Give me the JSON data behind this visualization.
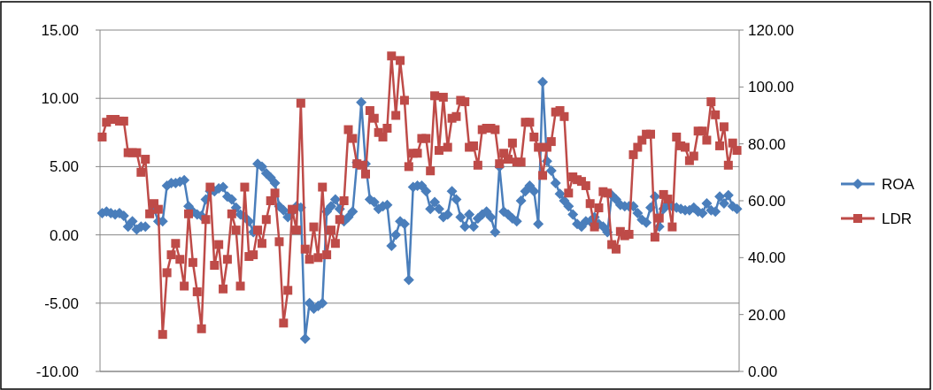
{
  "chart_data": {
    "type": "line",
    "categories": [
      null,
      null,
      null,
      null,
      null,
      null,
      null,
      null,
      null,
      null,
      null,
      null,
      null,
      null,
      null,
      null,
      null,
      null,
      null,
      null,
      null,
      null,
      null,
      null,
      null,
      null,
      null,
      null,
      null,
      null,
      null,
      null,
      null,
      null,
      null,
      null,
      null,
      null,
      null,
      null,
      null,
      null,
      null,
      null,
      null,
      null,
      null,
      null,
      null,
      null,
      null,
      null,
      null,
      null,
      null,
      null,
      null,
      null,
      null,
      null,
      null,
      null,
      null,
      null,
      null,
      null,
      null,
      null,
      null,
      null,
      null,
      null,
      null,
      null,
      null,
      null,
      null,
      null,
      null,
      null,
      null,
      null,
      null,
      null,
      null,
      null,
      null,
      null,
      null,
      null,
      null,
      null,
      null,
      null,
      null,
      null,
      null,
      null,
      null,
      null,
      null,
      null,
      null,
      null,
      null,
      null,
      null,
      null,
      null,
      null,
      null,
      null,
      null,
      null,
      null,
      null,
      null,
      null,
      null,
      null,
      null,
      null,
      null,
      null,
      null,
      null,
      null,
      null,
      null,
      null,
      null,
      null,
      null,
      null,
      null,
      null,
      null,
      null,
      null,
      null,
      null,
      null,
      null,
      null,
      null,
      null,
      null,
      null
    ],
    "series": [
      {
        "name": "ROA",
        "color": "#4a7ebb",
        "marker": "diamond",
        "values": [
          1.6,
          1.7,
          1.6,
          1.5,
          1.6,
          1.4,
          0.6,
          1.0,
          0.4,
          0.6,
          0.6,
          null,
          1.9,
          1.0,
          1.0,
          3.6,
          3.8,
          3.8,
          3.9,
          4.0,
          2.1,
          1.7,
          1.5,
          1.4,
          2.6,
          3.2,
          3.2,
          3.4,
          3.5,
          2.8,
          2.6,
          2.0,
          1.5,
          1.3,
          1.0,
          0.2,
          5.2,
          5.0,
          4.5,
          4.2,
          3.8,
          2.1,
          1.8,
          1.3,
          1.7,
          2.1,
          2.0,
          -7.6,
          -5.0,
          -5.4,
          -5.2,
          -5.0,
          1.7,
          2.1,
          2.6,
          1.9,
          1.0,
          1.3,
          1.7,
          5.3,
          9.7,
          5.2,
          2.6,
          2.4,
          1.9,
          2.1,
          2.2,
          -0.8,
          0,
          1.0,
          0.8,
          -3.3,
          3.5,
          3.6,
          3.6,
          3.2,
          1.9,
          2.4,
          1.9,
          1.3,
          1.5,
          3.2,
          2.6,
          1.3,
          0.6,
          1.5,
          0.6,
          1.2,
          1.5,
          1.7,
          1.3,
          0.2,
          5.0,
          1.7,
          1.5,
          1.2,
          1.0,
          2.5,
          3.2,
          3.6,
          3.2,
          0.8,
          11.2,
          5.4,
          4.7,
          3.8,
          3.0,
          2.5,
          2.1,
          1.5,
          0.8,
          0.6,
          1.0,
          1.0,
          1.3,
          0.8,
          0.6,
          0.2,
          2.9,
          2.6,
          2.2,
          2.1,
          2.1,
          2.1,
          1.6,
          1.1,
          0.9,
          2.0,
          2.8,
          0.6,
          1.9,
          2.3,
          2.1,
          2.0,
          1.9,
          1.8,
          1.8,
          2.0,
          1.7,
          1.6,
          2.3,
          1.8,
          1.7,
          2.8,
          2.3,
          2.9,
          2.1,
          1.9
        ]
      },
      {
        "name": "LDR",
        "color": "#be4b48",
        "marker": "square",
        "axis": "y2",
        "values": [
          82.4,
          87.6,
          88.6,
          88.6,
          88,
          88,
          76.9,
          76.9,
          76.9,
          70,
          74.6,
          55.4,
          59,
          57,
          13,
          34.7,
          41,
          45,
          39.4,
          30,
          55.4,
          38.3,
          28,
          15,
          53.4,
          64.8,
          37.3,
          44.6,
          29,
          39.4,
          55.4,
          49.7,
          30,
          64.8,
          40.4,
          41,
          49.7,
          45,
          53.4,
          60,
          62.7,
          45.6,
          17,
          28.5,
          57,
          49.7,
          94.3,
          43,
          39.4,
          50.8,
          40,
          64.8,
          41,
          49.7,
          45,
          53.4,
          60,
          85,
          81.9,
          73,
          72.5,
          69.4,
          91.7,
          89,
          84,
          82.4,
          85.5,
          110.9,
          90,
          109.3,
          95.3,
          72,
          76.7,
          76.7,
          81.9,
          81.9,
          70.5,
          96.9,
          77.7,
          96.4,
          78.8,
          89,
          89.6,
          95.3,
          94.8,
          78.8,
          79.3,
          72.5,
          85,
          85.5,
          85.5,
          85,
          73,
          76.7,
          74.6,
          80.3,
          73.6,
          73.6,
          87.6,
          87.6,
          82.4,
          78.8,
          68.9,
          78.8,
          80.8,
          91.2,
          91.7,
          89.6,
          62.7,
          68.4,
          67.4,
          66.8,
          65.3,
          59,
          50.8,
          57.5,
          63.2,
          62.7,
          44.6,
          43,
          49.2,
          47.7,
          48.2,
          76.2,
          78.8,
          81.3,
          83.4,
          83.4,
          47.2,
          53.9,
          62.2,
          60.6,
          50.8,
          82.4,
          79.3,
          78.8,
          74.1,
          75.7,
          84.5,
          84.5,
          81.3,
          94.8,
          90.2,
          79.3,
          86,
          72.5,
          80.3,
          77.7
        ]
      }
    ],
    "ylim": [
      -10,
      15
    ],
    "yticks": [
      {
        "value": -10,
        "label": "-10.00"
      },
      {
        "value": -5,
        "label": "-5.00"
      },
      {
        "value": 0,
        "label": "0.00"
      },
      {
        "value": 5,
        "label": "5.00"
      },
      {
        "value": 10,
        "label": "10.00"
      },
      {
        "value": 15,
        "label": "15.00"
      }
    ],
    "y2lim": [
      0,
      120
    ],
    "y2ticks": [
      {
        "value": 0,
        "label": "0.00"
      },
      {
        "value": 20,
        "label": "20.00"
      },
      {
        "value": 40,
        "label": "40.00"
      },
      {
        "value": 60,
        "label": "60.00"
      },
      {
        "value": 80,
        "label": "80.00"
      },
      {
        "value": 100,
        "label": "100.00"
      },
      {
        "value": 120,
        "label": "120.00"
      }
    ],
    "grid": "y",
    "legend": "right",
    "line_style": "solid"
  }
}
